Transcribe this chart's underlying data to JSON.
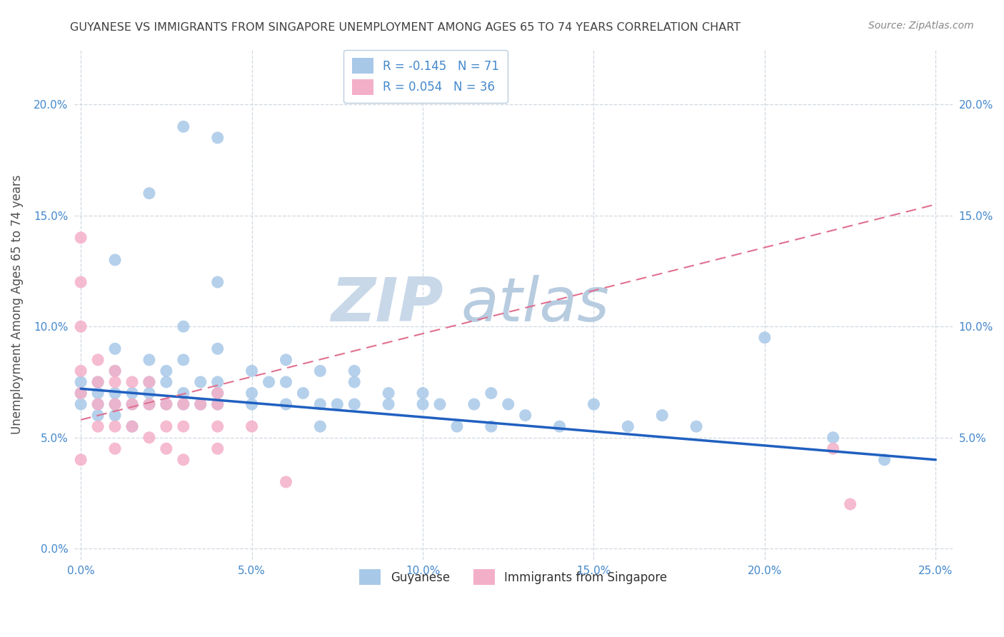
{
  "title": "GUYANESE VS IMMIGRANTS FROM SINGAPORE UNEMPLOYMENT AMONG AGES 65 TO 74 YEARS CORRELATION CHART",
  "source": "Source: ZipAtlas.com",
  "ylabel": "Unemployment Among Ages 65 to 74 years",
  "xlim": [
    -0.002,
    0.255
  ],
  "ylim": [
    -0.005,
    0.225
  ],
  "x_ticks": [
    0.0,
    0.05,
    0.1,
    0.15,
    0.2,
    0.25
  ],
  "x_tick_labels": [
    "0.0%",
    "5.0%",
    "10.0%",
    "15.0%",
    "20.0%",
    "25.0%"
  ],
  "y_ticks": [
    0.0,
    0.05,
    0.1,
    0.15,
    0.2
  ],
  "y_tick_labels": [
    "0.0%",
    "5.0%",
    "10.0%",
    "15.0%",
    "20.0%"
  ],
  "right_y_ticks": [
    0.05,
    0.1,
    0.15,
    0.2
  ],
  "right_y_tick_labels": [
    "5.0%",
    "10.0%",
    "15.0%",
    "20.0%"
  ],
  "blue_color": "#a8c8e8",
  "pink_color": "#f4afc8",
  "blue_line_color": "#2060c0",
  "pink_line_color": "#e07090",
  "R_blue": -0.145,
  "N_blue": 71,
  "R_pink": 0.054,
  "N_pink": 36,
  "legend_label_blue": "Guyanese",
  "legend_label_pink": "Immigrants from Singapore",
  "watermark_zip": "ZIP",
  "watermark_atlas": "atlas",
  "blue_line_x0": 0.0,
  "blue_line_y0": 0.072,
  "blue_line_x1": 0.25,
  "blue_line_y1": 0.04,
  "pink_line_x0": 0.0,
  "pink_line_y0": 0.058,
  "pink_line_x1": 0.25,
  "pink_line_y1": 0.155,
  "blue_scatter_x": [
    0.0,
    0.0,
    0.0,
    0.005,
    0.005,
    0.005,
    0.005,
    0.01,
    0.01,
    0.01,
    0.01,
    0.01,
    0.015,
    0.015,
    0.015,
    0.02,
    0.02,
    0.02,
    0.02,
    0.025,
    0.025,
    0.025,
    0.03,
    0.03,
    0.03,
    0.03,
    0.035,
    0.035,
    0.04,
    0.04,
    0.04,
    0.04,
    0.04,
    0.05,
    0.05,
    0.05,
    0.055,
    0.06,
    0.06,
    0.06,
    0.065,
    0.07,
    0.07,
    0.07,
    0.075,
    0.08,
    0.08,
    0.08,
    0.09,
    0.09,
    0.1,
    0.1,
    0.105,
    0.11,
    0.115,
    0.12,
    0.12,
    0.125,
    0.13,
    0.14,
    0.15,
    0.16,
    0.17,
    0.18,
    0.2,
    0.22,
    0.235,
    0.01,
    0.02,
    0.03,
    0.04
  ],
  "blue_scatter_y": [
    0.07,
    0.065,
    0.075,
    0.07,
    0.065,
    0.06,
    0.075,
    0.09,
    0.07,
    0.065,
    0.06,
    0.08,
    0.07,
    0.065,
    0.055,
    0.085,
    0.07,
    0.065,
    0.075,
    0.08,
    0.065,
    0.075,
    0.1,
    0.085,
    0.07,
    0.065,
    0.065,
    0.075,
    0.075,
    0.09,
    0.07,
    0.065,
    0.12,
    0.08,
    0.07,
    0.065,
    0.075,
    0.085,
    0.075,
    0.065,
    0.07,
    0.08,
    0.065,
    0.055,
    0.065,
    0.075,
    0.065,
    0.08,
    0.07,
    0.065,
    0.065,
    0.07,
    0.065,
    0.055,
    0.065,
    0.07,
    0.055,
    0.065,
    0.06,
    0.055,
    0.065,
    0.055,
    0.06,
    0.055,
    0.095,
    0.05,
    0.04,
    0.13,
    0.16,
    0.19,
    0.185
  ],
  "pink_scatter_x": [
    0.0,
    0.0,
    0.0,
    0.0,
    0.0,
    0.0,
    0.005,
    0.005,
    0.005,
    0.005,
    0.01,
    0.01,
    0.01,
    0.01,
    0.01,
    0.015,
    0.015,
    0.015,
    0.02,
    0.02,
    0.02,
    0.025,
    0.025,
    0.025,
    0.03,
    0.03,
    0.03,
    0.035,
    0.04,
    0.04,
    0.04,
    0.05,
    0.06,
    0.22,
    0.225,
    0.04
  ],
  "pink_scatter_y": [
    0.14,
    0.12,
    0.1,
    0.08,
    0.07,
    0.04,
    0.085,
    0.075,
    0.065,
    0.055,
    0.08,
    0.075,
    0.065,
    0.055,
    0.045,
    0.075,
    0.065,
    0.055,
    0.075,
    0.065,
    0.05,
    0.065,
    0.055,
    0.045,
    0.065,
    0.055,
    0.04,
    0.065,
    0.07,
    0.065,
    0.045,
    0.055,
    0.03,
    0.045,
    0.02,
    0.055
  ],
  "background_color": "#ffffff",
  "grid_color": "#d0d8e0",
  "title_color": "#404040",
  "axis_label_color": "#505050",
  "tick_color": "#4488cc"
}
